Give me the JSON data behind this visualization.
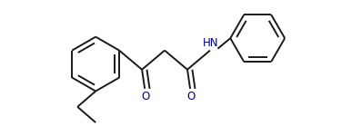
{
  "background_color": "#ffffff",
  "line_color": "#1a1a1a",
  "nh_color": "#000080",
  "o_color": "#000080",
  "linewidth": 1.4,
  "figsize": [
    3.87,
    1.5
  ],
  "dpi": 100,
  "xlim": [
    0.0,
    10.0
  ],
  "ylim": [
    0.0,
    3.87
  ]
}
